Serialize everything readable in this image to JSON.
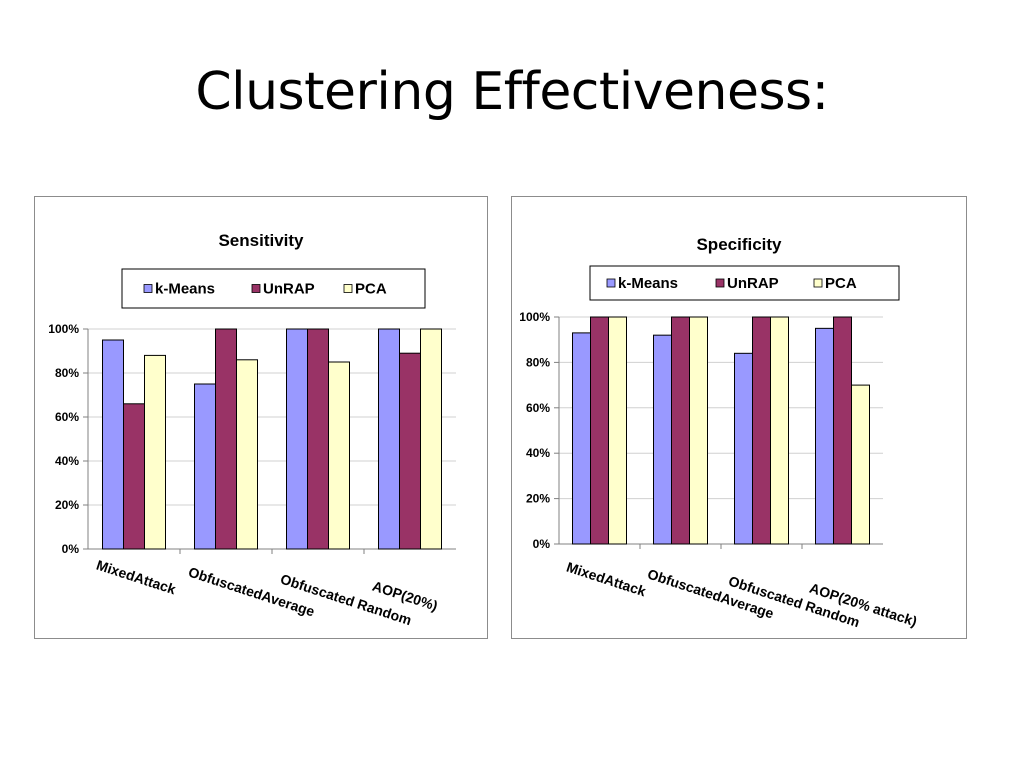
{
  "slide": {
    "title": "Clustering Effectiveness:"
  },
  "colors": {
    "k-Means": "#9999ff",
    "UnRAP": "#993366",
    "PCA": "#ffffcc"
  },
  "chart_data": [
    {
      "type": "bar",
      "title": "Sensitivity",
      "categories": [
        "MixedAttack",
        "ObfuscatedAverage",
        "Obfuscated Random",
        "AOP(20%)"
      ],
      "series": [
        {
          "name": "k-Means",
          "values": [
            0.95,
            0.75,
            1.0,
            1.0
          ]
        },
        {
          "name": "UnRAP",
          "values": [
            0.66,
            1.0,
            1.0,
            0.89
          ]
        },
        {
          "name": "PCA",
          "values": [
            0.88,
            0.86,
            0.85,
            1.0
          ]
        }
      ],
      "yticks": [
        "0%",
        "20%",
        "40%",
        "60%",
        "80%",
        "100%"
      ],
      "ylim": [
        0,
        1
      ],
      "legend_position": "top",
      "grid": true
    },
    {
      "type": "bar",
      "title": "Specificity",
      "categories": [
        "MixedAttack",
        "ObfuscatedAverage",
        "Obfuscated Random",
        "AOP(20% attack)"
      ],
      "series": [
        {
          "name": "k-Means",
          "values": [
            0.93,
            0.92,
            0.84,
            0.95
          ]
        },
        {
          "name": "UnRAP",
          "values": [
            1.0,
            1.0,
            1.0,
            1.0
          ]
        },
        {
          "name": "PCA",
          "values": [
            1.0,
            1.0,
            1.0,
            0.7
          ]
        }
      ],
      "yticks": [
        "0%",
        "20%",
        "40%",
        "60%",
        "80%",
        "100%"
      ],
      "ylim": [
        0,
        1
      ],
      "legend_position": "top",
      "grid": true
    }
  ]
}
